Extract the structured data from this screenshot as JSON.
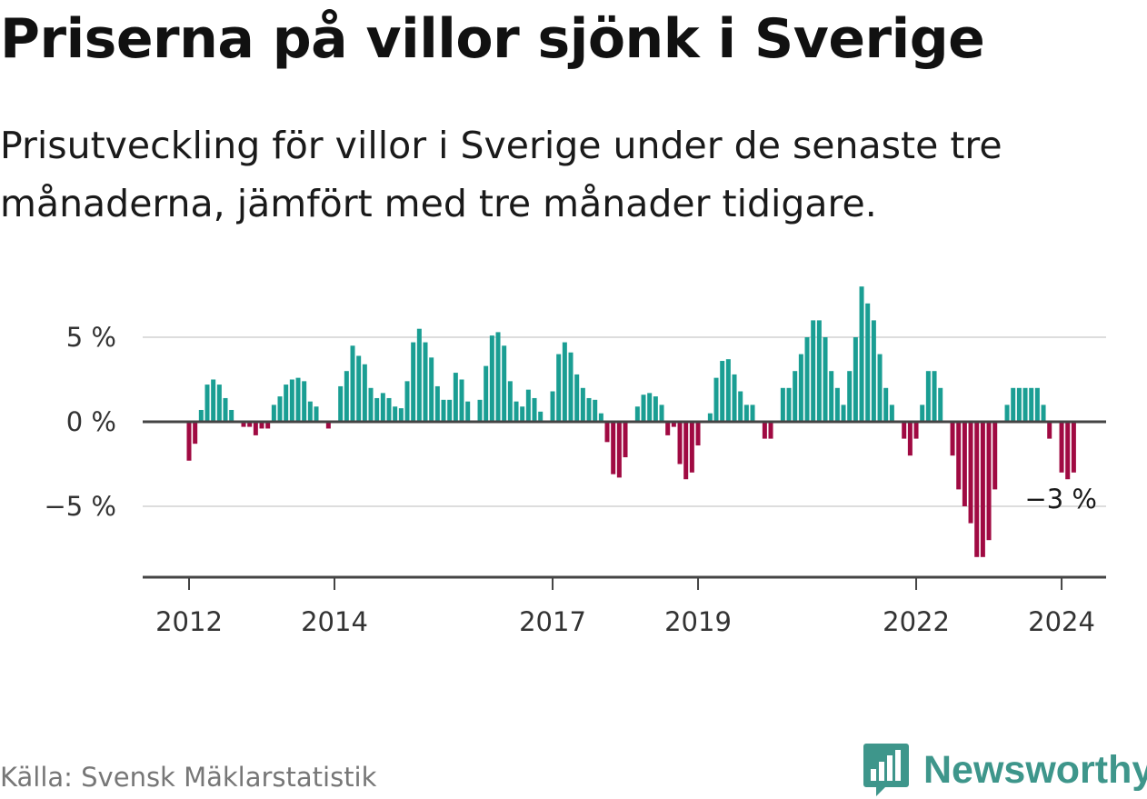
{
  "title": "Priserna på villor sjönk i Sverige",
  "subtitle": "Prisutveckling för villor i Sverige under de senaste tre månaderna, jämfört med tre månader tidigare.",
  "source": "Källa: Svensk Mäklarstatistik",
  "brand": {
    "name": "Newsworthy",
    "icon": "bar-chart-logo-icon"
  },
  "colors": {
    "positive": "#1a9e93",
    "negative": "#a00a42",
    "brand": "#3e968b",
    "grid": "#dddddd",
    "axis": "#444444"
  },
  "chart_data": {
    "type": "bar",
    "title": "Priserna på villor sjönk i Sverige",
    "xlabel": "",
    "ylabel": "",
    "ylim": [
      -9,
      8.5
    ],
    "yticks": [
      {
        "value": 5,
        "label": "5 %"
      },
      {
        "value": 0,
        "label": "0 %"
      },
      {
        "value": -5,
        "label": "−5 %"
      }
    ],
    "xticks": [
      {
        "index": 0,
        "label": "2012"
      },
      {
        "index": 24,
        "label": "2014"
      },
      {
        "index": 60,
        "label": "2017"
      },
      {
        "index": 84,
        "label": "2019"
      },
      {
        "index": 120,
        "label": "2022"
      },
      {
        "index": 144,
        "label": "2024"
      }
    ],
    "x_start": "2012-01",
    "annotation": {
      "index": 149,
      "label": "−3 %"
    },
    "values": [
      -2.3,
      -1.3,
      0.7,
      2.2,
      2.5,
      2.2,
      1.4,
      0.7,
      0,
      -0.3,
      -0.3,
      -0.8,
      -0.4,
      -0.4,
      1.0,
      1.5,
      2.2,
      2.5,
      2.6,
      2.4,
      1.2,
      0.9,
      0,
      -0.4,
      0,
      2.1,
      3.0,
      4.5,
      3.9,
      3.4,
      2.0,
      1.4,
      1.7,
      1.4,
      0.9,
      0.8,
      2.4,
      4.7,
      5.5,
      4.7,
      3.8,
      2.1,
      1.3,
      1.3,
      2.9,
      2.5,
      1.2,
      0,
      1.3,
      3.3,
      5.1,
      5.3,
      4.5,
      2.4,
      1.2,
      0.9,
      1.9,
      1.4,
      0.6,
      0,
      1.8,
      4.0,
      4.7,
      4.1,
      2.8,
      2.0,
      1.4,
      1.3,
      0.5,
      -1.2,
      -3.1,
      -3.3,
      -2.1,
      0,
      0.9,
      1.6,
      1.7,
      1.5,
      1.0,
      -0.8,
      -0.3,
      -2.5,
      -3.4,
      -3.0,
      -1.4,
      0,
      0.5,
      2.6,
      3.6,
      3.7,
      2.8,
      1.8,
      1.0,
      1.0,
      0,
      -1.0,
      -1.0,
      0,
      2.0,
      2.0,
      3.0,
      4.0,
      5.0,
      6.0,
      6.0,
      5.0,
      3.0,
      2.0,
      1.0,
      3.0,
      5.0,
      8.0,
      7.0,
      6.0,
      4.0,
      2.0,
      1.0,
      0,
      -1.0,
      -2.0,
      -1.0,
      1.0,
      3.0,
      3.0,
      2.0,
      0,
      -2.0,
      -4.0,
      -5.0,
      -6.0,
      -8.0,
      -8.0,
      -7.0,
      -4.0,
      0,
      1.0,
      2.0,
      2.0,
      2.0,
      2.0,
      2.0,
      1.0,
      -1.0,
      0,
      -3.0,
      -3.4,
      -3.0
    ]
  }
}
